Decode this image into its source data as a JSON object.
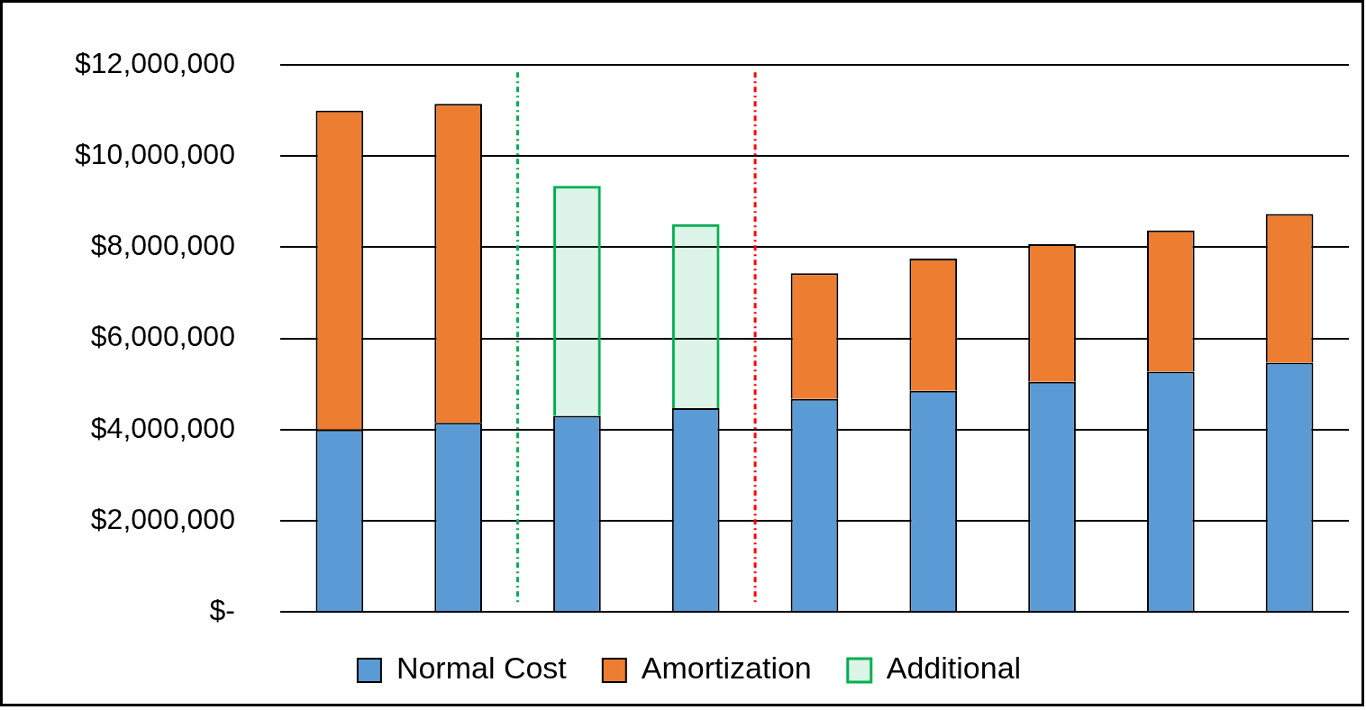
{
  "chart_data": {
    "type": "bar",
    "stacked": true,
    "categories": [
      null,
      null,
      null,
      null,
      null,
      null,
      null,
      null,
      null
    ],
    "series": [
      {
        "name": "Normal Cost",
        "color": "#5b9bd5",
        "values": [
          4000000,
          4150000,
          4300000,
          4470000,
          4670000,
          4850000,
          5050000,
          5270000,
          5470000
        ]
      },
      {
        "name": "Amortization",
        "color": "#ed7d31",
        "values": [
          7000000,
          7000000,
          null,
          null,
          2760000,
          2900000,
          3020000,
          3100000,
          3260000
        ]
      },
      {
        "name": "Additional",
        "color": "#00b050",
        "line_style": "dashed",
        "values": [
          null,
          null,
          5050000,
          4040000,
          null,
          null,
          null,
          null,
          null
        ]
      }
    ],
    "ylim": [
      0,
      12000000
    ],
    "yticks": [
      {
        "value": 0,
        "label": "$-"
      },
      {
        "value": 2000000,
        "label": "$2,000,000"
      },
      {
        "value": 4000000,
        "label": "$4,000,000"
      },
      {
        "value": 6000000,
        "label": "$6,000,000"
      },
      {
        "value": 8000000,
        "label": "$8,000,000"
      },
      {
        "value": 10000000,
        "label": "$10,000,000"
      },
      {
        "value": 12000000,
        "label": "$12,000,000"
      }
    ],
    "grid": "y",
    "legend": "bottom"
  }
}
